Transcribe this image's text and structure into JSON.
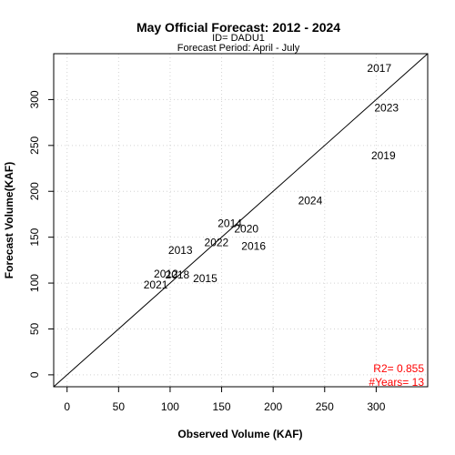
{
  "chart_data": {
    "type": "scatter",
    "title": "May Official Forecast: 2012 - 2024",
    "subtitle_lines": [
      "ID= DADU1",
      "Forecast Period:  April - July"
    ],
    "xlabel": "Observed Volume (KAF)",
    "ylabel": "Forecast Volume(KAF)",
    "xlim": [
      -13,
      350
    ],
    "ylim": [
      -13,
      350
    ],
    "xticks": [
      0,
      50,
      100,
      150,
      200,
      250,
      300
    ],
    "yticks": [
      0,
      50,
      100,
      150,
      200,
      250,
      300
    ],
    "grid": true,
    "reference_line": "1:1",
    "points": [
      {
        "label": "2012",
        "x": 96,
        "y": 110
      },
      {
        "label": "2013",
        "x": 110,
        "y": 136
      },
      {
        "label": "2014",
        "x": 158,
        "y": 165
      },
      {
        "label": "2015",
        "x": 134,
        "y": 105
      },
      {
        "label": "2016",
        "x": 181,
        "y": 140
      },
      {
        "label": "2017",
        "x": 303,
        "y": 334
      },
      {
        "label": "2018",
        "x": 107,
        "y": 109
      },
      {
        "label": "2019",
        "x": 307,
        "y": 239
      },
      {
        "label": "2020",
        "x": 174,
        "y": 159
      },
      {
        "label": "2021",
        "x": 86,
        "y": 98
      },
      {
        "label": "2022",
        "x": 145,
        "y": 144
      },
      {
        "label": "2023",
        "x": 310,
        "y": 291
      },
      {
        "label": "2024",
        "x": 236,
        "y": 190
      }
    ],
    "stats": [
      "R2=  0.855",
      "#Years=  13"
    ],
    "stat_color": "#ff0000",
    "grid_color": "#d3d3d3"
  }
}
